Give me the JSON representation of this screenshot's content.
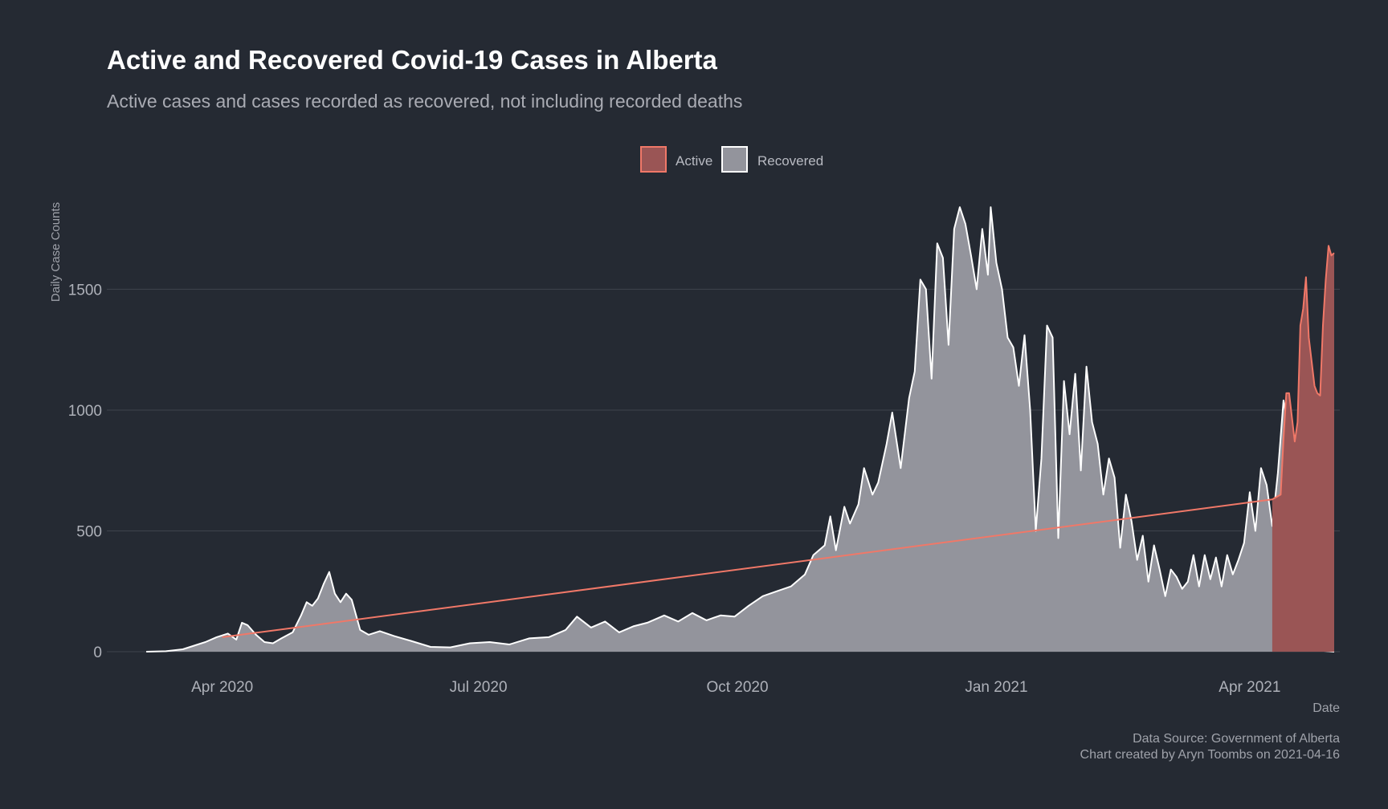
{
  "chart_data": {
    "type": "area",
    "title": "Active and Recovered Covid-19 Cases in Alberta",
    "subtitle": "Active cases and cases recorded as recovered, not including recorded deaths",
    "xlabel": "Date",
    "ylabel": "Daily Case Counts",
    "x_ticks": [
      "Apr 2020",
      "Jul 2020",
      "Oct 2020",
      "Jan 2021",
      "Apr 2021"
    ],
    "x_tick_dates": [
      "2020-04-01",
      "2020-07-01",
      "2020-10-01",
      "2021-01-01",
      "2021-04-01"
    ],
    "y_ticks": [
      0,
      500,
      1000,
      1500
    ],
    "xlim": [
      "2020-02-20",
      "2021-05-03"
    ],
    "ylim": [
      0,
      1900
    ],
    "grid": "horizontal",
    "legend_position": "top",
    "caption": [
      "Data Source: Government of Alberta",
      "Chart created by Aryn Toombs on 2021-04-16"
    ],
    "colors": {
      "background": "#252a33",
      "grid": "#3f444d",
      "recovered_fill": "#93949c",
      "recovered_line": "#ffffff",
      "active_fill": "#9a5555",
      "active_line": "#f07868"
    },
    "series": [
      {
        "name": "Recovered",
        "points": [
          [
            "2020-03-05",
            0
          ],
          [
            "2020-03-12",
            2
          ],
          [
            "2020-03-18",
            10
          ],
          [
            "2020-03-22",
            25
          ],
          [
            "2020-03-26",
            40
          ],
          [
            "2020-03-30",
            60
          ],
          [
            "2020-04-03",
            75
          ],
          [
            "2020-04-06",
            50
          ],
          [
            "2020-04-08",
            120
          ],
          [
            "2020-04-10",
            110
          ],
          [
            "2020-04-13",
            70
          ],
          [
            "2020-04-16",
            40
          ],
          [
            "2020-04-19",
            35
          ],
          [
            "2020-04-22",
            55
          ],
          [
            "2020-04-26",
            80
          ],
          [
            "2020-04-29",
            150
          ],
          [
            "2020-05-01",
            205
          ],
          [
            "2020-05-03",
            190
          ],
          [
            "2020-05-05",
            220
          ],
          [
            "2020-05-07",
            280
          ],
          [
            "2020-05-09",
            330
          ],
          [
            "2020-05-11",
            240
          ],
          [
            "2020-05-13",
            205
          ],
          [
            "2020-05-15",
            240
          ],
          [
            "2020-05-17",
            215
          ],
          [
            "2020-05-20",
            90
          ],
          [
            "2020-05-23",
            70
          ],
          [
            "2020-05-27",
            85
          ],
          [
            "2020-06-01",
            65
          ],
          [
            "2020-06-07",
            45
          ],
          [
            "2020-06-14",
            20
          ],
          [
            "2020-06-21",
            18
          ],
          [
            "2020-06-28",
            35
          ],
          [
            "2020-07-05",
            40
          ],
          [
            "2020-07-12",
            30
          ],
          [
            "2020-07-19",
            55
          ],
          [
            "2020-07-26",
            60
          ],
          [
            "2020-08-01",
            90
          ],
          [
            "2020-08-05",
            145
          ],
          [
            "2020-08-10",
            100
          ],
          [
            "2020-08-15",
            125
          ],
          [
            "2020-08-20",
            80
          ],
          [
            "2020-08-25",
            105
          ],
          [
            "2020-08-30",
            120
          ],
          [
            "2020-09-05",
            150
          ],
          [
            "2020-09-10",
            125
          ],
          [
            "2020-09-15",
            160
          ],
          [
            "2020-09-20",
            130
          ],
          [
            "2020-09-25",
            150
          ],
          [
            "2020-09-30",
            145
          ],
          [
            "2020-10-05",
            190
          ],
          [
            "2020-10-10",
            230
          ],
          [
            "2020-10-15",
            250
          ],
          [
            "2020-10-20",
            270
          ],
          [
            "2020-10-25",
            320
          ],
          [
            "2020-10-28",
            400
          ],
          [
            "2020-11-01",
            440
          ],
          [
            "2020-11-03",
            560
          ],
          [
            "2020-11-05",
            420
          ],
          [
            "2020-11-08",
            600
          ],
          [
            "2020-11-10",
            530
          ],
          [
            "2020-11-13",
            610
          ],
          [
            "2020-11-15",
            760
          ],
          [
            "2020-11-18",
            650
          ],
          [
            "2020-11-20",
            700
          ],
          [
            "2020-11-23",
            860
          ],
          [
            "2020-11-25",
            990
          ],
          [
            "2020-11-28",
            760
          ],
          [
            "2020-12-01",
            1050
          ],
          [
            "2020-12-03",
            1160
          ],
          [
            "2020-12-05",
            1540
          ],
          [
            "2020-12-07",
            1500
          ],
          [
            "2020-12-09",
            1130
          ],
          [
            "2020-12-11",
            1690
          ],
          [
            "2020-12-13",
            1630
          ],
          [
            "2020-12-15",
            1270
          ],
          [
            "2020-12-17",
            1750
          ],
          [
            "2020-12-19",
            1840
          ],
          [
            "2020-12-21",
            1770
          ],
          [
            "2020-12-23",
            1640
          ],
          [
            "2020-12-25",
            1500
          ],
          [
            "2020-12-27",
            1750
          ],
          [
            "2020-12-29",
            1560
          ],
          [
            "2020-12-30",
            1840
          ],
          [
            "2021-01-01",
            1610
          ],
          [
            "2021-01-03",
            1500
          ],
          [
            "2021-01-05",
            1300
          ],
          [
            "2021-01-07",
            1260
          ],
          [
            "2021-01-09",
            1100
          ],
          [
            "2021-01-11",
            1310
          ],
          [
            "2021-01-13",
            1000
          ],
          [
            "2021-01-15",
            500
          ],
          [
            "2021-01-17",
            800
          ],
          [
            "2021-01-19",
            1350
          ],
          [
            "2021-01-21",
            1300
          ],
          [
            "2021-01-23",
            470
          ],
          [
            "2021-01-25",
            1120
          ],
          [
            "2021-01-27",
            900
          ],
          [
            "2021-01-29",
            1150
          ],
          [
            "2021-01-31",
            750
          ],
          [
            "2021-02-02",
            1180
          ],
          [
            "2021-02-04",
            950
          ],
          [
            "2021-02-06",
            860
          ],
          [
            "2021-02-08",
            650
          ],
          [
            "2021-02-10",
            800
          ],
          [
            "2021-02-12",
            720
          ],
          [
            "2021-02-14",
            430
          ],
          [
            "2021-02-16",
            650
          ],
          [
            "2021-02-18",
            540
          ],
          [
            "2021-02-20",
            380
          ],
          [
            "2021-02-22",
            480
          ],
          [
            "2021-02-24",
            290
          ],
          [
            "2021-02-26",
            440
          ],
          [
            "2021-02-28",
            340
          ],
          [
            "2021-03-02",
            230
          ],
          [
            "2021-03-04",
            340
          ],
          [
            "2021-03-06",
            310
          ],
          [
            "2021-03-08",
            260
          ],
          [
            "2021-03-10",
            290
          ],
          [
            "2021-03-12",
            400
          ],
          [
            "2021-03-14",
            270
          ],
          [
            "2021-03-16",
            400
          ],
          [
            "2021-03-18",
            300
          ],
          [
            "2021-03-20",
            390
          ],
          [
            "2021-03-22",
            270
          ],
          [
            "2021-03-24",
            400
          ],
          [
            "2021-03-26",
            320
          ],
          [
            "2021-03-28",
            380
          ],
          [
            "2021-03-30",
            450
          ],
          [
            "2021-04-01",
            660
          ],
          [
            "2021-04-03",
            500
          ],
          [
            "2021-04-05",
            760
          ],
          [
            "2021-04-07",
            690
          ],
          [
            "2021-04-09",
            520
          ],
          [
            "2021-04-11",
            740
          ],
          [
            "2021-04-13",
            1040
          ],
          [
            "2021-04-15",
            900
          ],
          [
            "2021-04-16",
            600
          ],
          [
            "2021-04-17",
            80
          ],
          [
            "2021-04-18",
            30
          ],
          [
            "2021-04-21",
            12
          ],
          [
            "2021-04-25",
            5
          ],
          [
            "2021-04-29",
            2
          ],
          [
            "2021-05-01",
            0
          ]
        ]
      },
      {
        "name": "Active",
        "points": [
          [
            "2020-04-01",
            60
          ],
          [
            "2021-04-09",
            630
          ],
          [
            "2021-04-12",
            650
          ],
          [
            "2021-04-13",
            880
          ],
          [
            "2021-04-14",
            1070
          ],
          [
            "2021-04-15",
            1070
          ],
          [
            "2021-04-16",
            970
          ],
          [
            "2021-04-17",
            870
          ],
          [
            "2021-04-18",
            950
          ],
          [
            "2021-04-19",
            1350
          ],
          [
            "2021-04-20",
            1420
          ],
          [
            "2021-04-21",
            1550
          ],
          [
            "2021-04-22",
            1300
          ],
          [
            "2021-04-23",
            1200
          ],
          [
            "2021-04-24",
            1100
          ],
          [
            "2021-04-25",
            1070
          ],
          [
            "2021-04-26",
            1060
          ],
          [
            "2021-04-27",
            1350
          ],
          [
            "2021-04-28",
            1540
          ],
          [
            "2021-04-29",
            1680
          ],
          [
            "2021-04-30",
            1640
          ],
          [
            "2021-05-01",
            1650
          ]
        ]
      }
    ]
  }
}
